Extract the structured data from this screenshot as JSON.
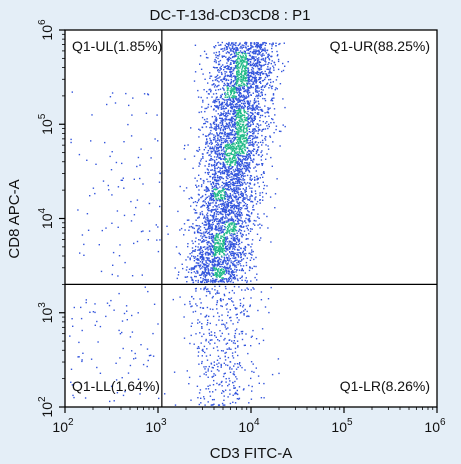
{
  "chart_data": {
    "type": "scatter",
    "title": "DC-T-13d-CD3CD8 : P1",
    "xlabel": "CD3 FITC-A",
    "ylabel": "CD8 APC-A",
    "x_scale": "log",
    "y_scale": "log",
    "xlim": [
      100,
      1000000
    ],
    "ylim": [
      100,
      1000000
    ],
    "x_ticks": [
      {
        "base": "10",
        "exp": "2",
        "value": 100
      },
      {
        "base": "10",
        "exp": "3",
        "value": 1000
      },
      {
        "base": "10",
        "exp": "4",
        "value": 10000
      },
      {
        "base": "10",
        "exp": "5",
        "value": 100000
      },
      {
        "base": "10",
        "exp": "6",
        "value": 1000000
      }
    ],
    "y_ticks": [
      {
        "base": "10",
        "exp": "2",
        "value": 100
      },
      {
        "base": "10",
        "exp": "3",
        "value": 1000
      },
      {
        "base": "10",
        "exp": "4",
        "value": 10000
      },
      {
        "base": "10",
        "exp": "5",
        "value": 100000
      },
      {
        "base": "10",
        "exp": "6",
        "value": 1000000
      }
    ],
    "gates": {
      "x": 1100,
      "y": 2000
    },
    "quadrants": [
      {
        "id": "UL",
        "label": "Q1-UL(1.85%)",
        "percent": 1.85
      },
      {
        "id": "UR",
        "label": "Q1-UR(88.25%)",
        "percent": 88.25
      },
      {
        "id": "LL",
        "label": "Q1-LL(1.64%)",
        "percent": 1.64
      },
      {
        "id": "LR",
        "label": "Q1-LR(8.26%)",
        "percent": 8.26
      }
    ],
    "colors": {
      "low_density": "#3355dd",
      "mid_density": "#22bb88",
      "high_density": "#ccdd33",
      "gate_line": "#000000",
      "background": "#e4eef7",
      "plot_background": "#ffffff"
    }
  }
}
